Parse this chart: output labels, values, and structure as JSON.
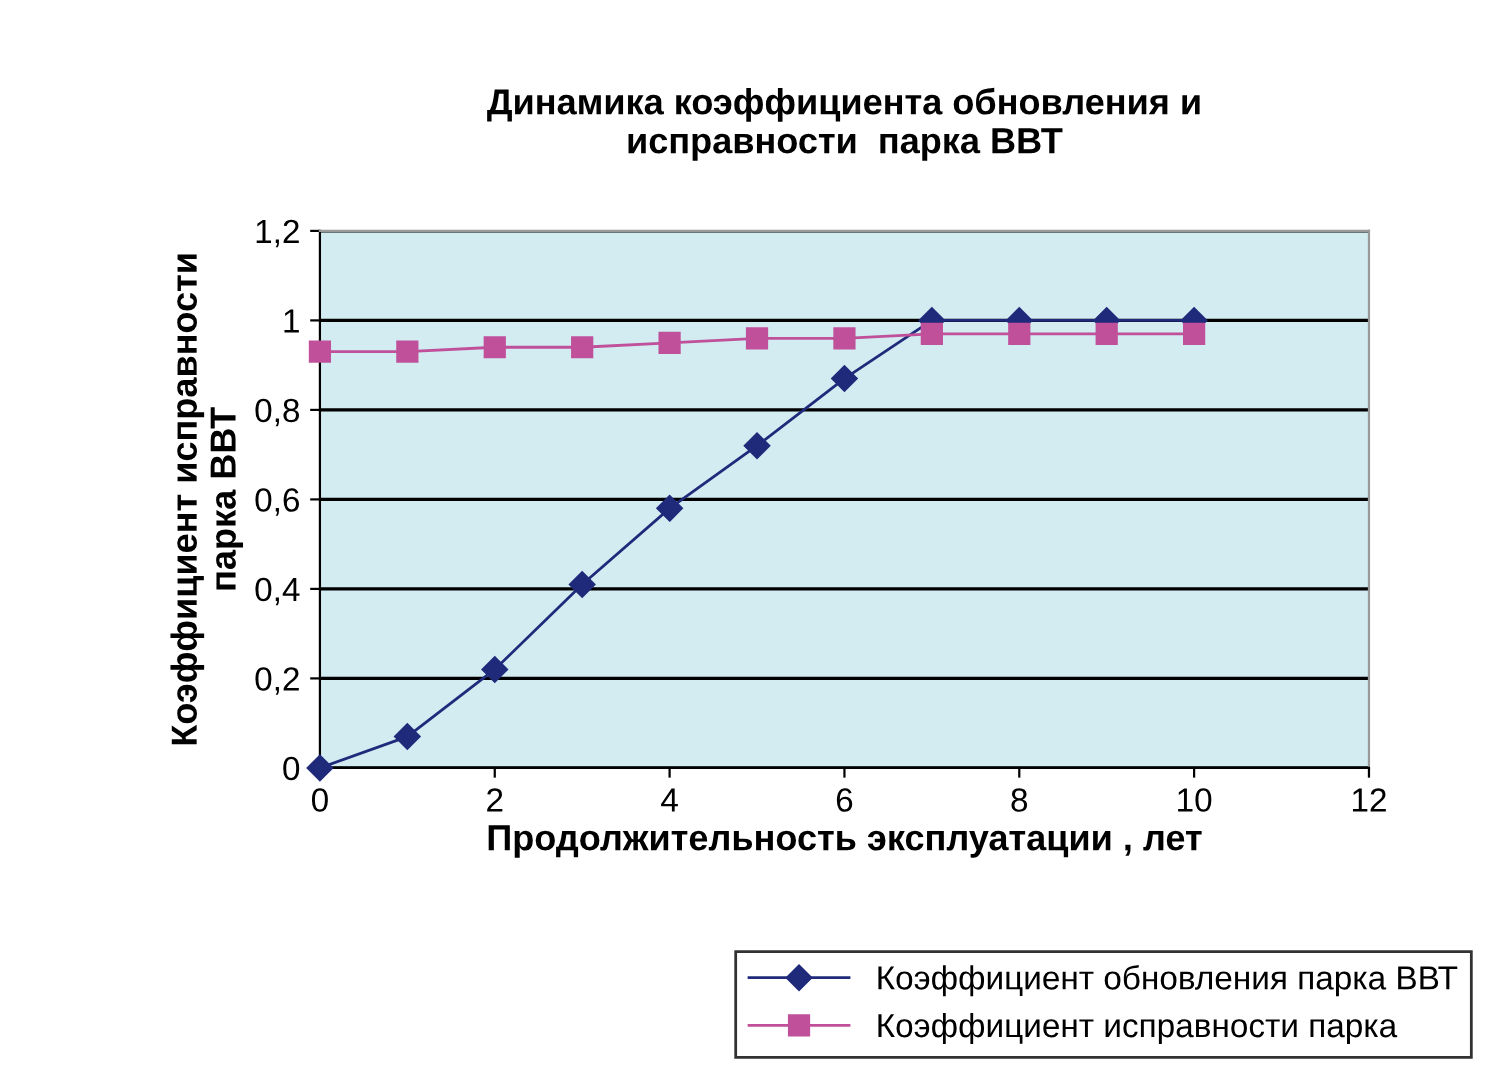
{
  "chart_data": {
    "type": "line",
    "title": "Динамика коэффициента обновления и\nисправности  парка ВВТ",
    "xlabel": "Продолжительность эксплуатации , лет",
    "ylabel": "Коэффициент исправности\nпарка ВВТ",
    "x": [
      0,
      1,
      2,
      3,
      4,
      5,
      6,
      7,
      8,
      9,
      10
    ],
    "series": [
      {
        "name": "Коэффициент обновления парка ВВТ",
        "color": "#1f2a7a",
        "marker": "diamond",
        "values": [
          0,
          0.07,
          0.22,
          0.41,
          0.58,
          0.72,
          0.87,
          1,
          1,
          1,
          1
        ]
      },
      {
        "name": "Коэффициент исправности парка",
        "color": "#c0509a",
        "marker": "square",
        "values": [
          0.93,
          0.93,
          0.94,
          0.94,
          0.95,
          0.96,
          0.96,
          0.97,
          0.97,
          0.97,
          0.97
        ]
      }
    ],
    "xlim": [
      0,
      12
    ],
    "xticks": [
      0,
      2,
      4,
      6,
      8,
      10,
      12
    ],
    "ylim": [
      0,
      1.2
    ],
    "yticks": [
      {
        "value": 0,
        "label": "0"
      },
      {
        "value": 0.2,
        "label": "0,2"
      },
      {
        "value": 0.4,
        "label": "0,4"
      },
      {
        "value": 0.6,
        "label": "0,6"
      },
      {
        "value": 0.8,
        "label": "0,8"
      },
      {
        "value": 1,
        "label": "1"
      },
      {
        "value": 1.2,
        "label": "1,2"
      }
    ],
    "grid": "y",
    "legend": "bottom right",
    "line_style": "solid"
  }
}
